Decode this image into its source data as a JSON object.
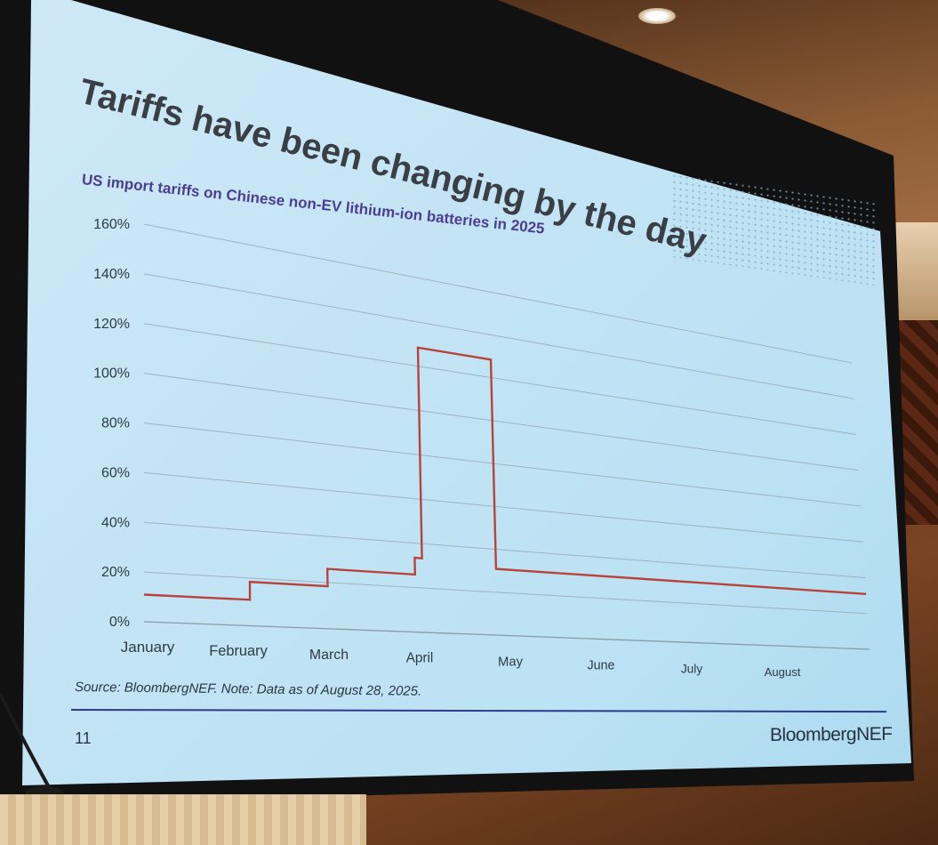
{
  "slide": {
    "title": "Tariffs have been changing by the day",
    "page_number": "11",
    "source_note": "Source: BloombergNEF. Note: Data as of August 28, 2025.",
    "brand": "BloombergNEF"
  },
  "chart_data": {
    "type": "line",
    "title": "US import tariffs on Chinese non-EV lithium-ion batteries in 2025",
    "xlabel": "",
    "ylabel": "",
    "x_ticks": [
      "January",
      "February",
      "March",
      "April",
      "May",
      "June",
      "July",
      "August"
    ],
    "y_ticks": [
      "0%",
      "20%",
      "40%",
      "60%",
      "80%",
      "100%",
      "140%",
      "160%"
    ],
    "y_ticks_full": [
      "0%",
      "20%",
      "40%",
      "60%",
      "80%",
      "100%",
      "120%",
      "140%",
      "160%"
    ],
    "ylim": [
      0,
      160
    ],
    "xlim": [
      1,
      9
    ],
    "grid": true,
    "series": [
      {
        "color": "#b8433b",
        "points": [
          [
            1.0,
            10.9
          ],
          [
            2.17,
            10.9
          ],
          [
            2.17,
            18.4
          ],
          [
            3.03,
            18.4
          ],
          [
            3.03,
            25.9
          ],
          [
            4.0,
            25.9
          ],
          [
            4.0,
            33.4
          ],
          [
            4.08,
            33.4
          ],
          [
            4.08,
            128.4
          ],
          [
            4.9,
            128.4
          ],
          [
            4.9,
            30.9
          ],
          [
            9.0,
            30.9
          ]
        ]
      }
    ]
  }
}
